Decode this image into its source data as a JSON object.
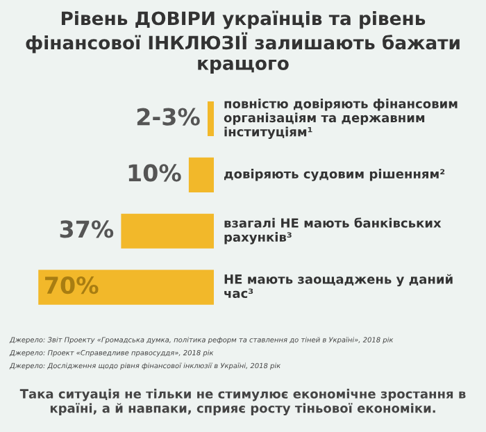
{
  "chart_data": {
    "type": "bar",
    "orientation": "horizontal",
    "title": "Рівень ДОВІРИ українців та рівень фінансової ІНКЛЮЗІЇ залишають бажати кращого",
    "categories": [
      "повністю довіряють фінансовим організаціям та державним інституціям¹",
      "довіряють судовим рішенням²",
      "взагалі НЕ мають банківських рахунків³",
      "НЕ мають заощаджень у даний час³"
    ],
    "values": [
      2.5,
      10,
      37,
      70
    ],
    "value_labels": [
      "2-3%",
      "10%",
      "37%",
      "70%"
    ],
    "color": "#f2b82a",
    "annotations": [
      "Джерело: Звіт Проекту «Громадська думка, політика реформ та ставлення до тіней в Україні», 2018 рік",
      "Джерело: Проект «Справедливе правосуддя», 2018 рік",
      "Джерело: Дослідження щодо рівня фінансової інклюзії в Україні, 2018 рік",
      "Така ситуація не тільки не стимулює економічне зростання в країні, а й навпаки, сприяє росту тіньової економіки."
    ]
  }
}
